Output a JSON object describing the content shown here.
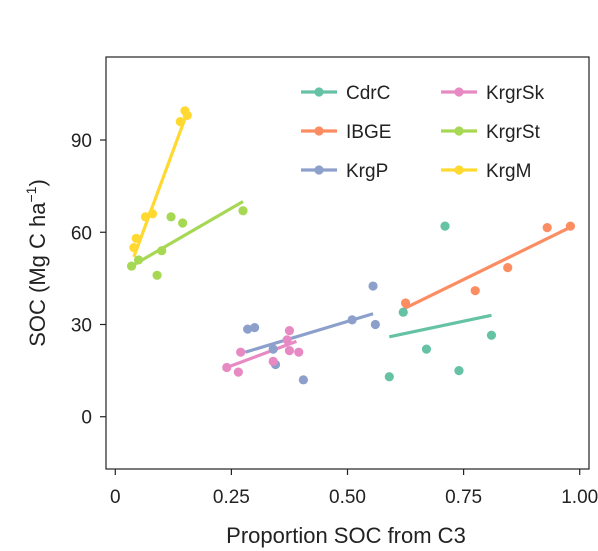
{
  "chart_data": {
    "type": "scatter",
    "xlabel": "Proportion SOC from C3",
    "ylabel_main": "SOC (Mg C ha",
    "ylabel_sup": "−1",
    "ylabel_close": ")",
    "xlim": [
      -0.02,
      1.02
    ],
    "ylim": [
      -17,
      117
    ],
    "xticks": [
      0,
      0.25,
      0.5,
      0.75,
      1.0
    ],
    "xtick_labels": [
      "0",
      "0.25",
      "0.50",
      "0.75",
      "1.00"
    ],
    "yticks": [
      0,
      30,
      60,
      90
    ],
    "ytick_labels": [
      "0",
      "30",
      "60",
      "90"
    ],
    "legend_position": "top-right",
    "series": [
      {
        "name": "CdrC",
        "color": "#66c2a5",
        "points": [
          [
            0.59,
            13
          ],
          [
            0.62,
            34
          ],
          [
            0.67,
            22
          ],
          [
            0.71,
            62
          ],
          [
            0.74,
            15
          ],
          [
            0.81,
            26.5
          ]
        ],
        "fit": [
          [
            0.59,
            26
          ],
          [
            0.81,
            33
          ]
        ]
      },
      {
        "name": "IBGE",
        "color": "#fc8d62",
        "points": [
          [
            0.625,
            37
          ],
          [
            0.775,
            41
          ],
          [
            0.845,
            48.5
          ],
          [
            0.93,
            61.5
          ],
          [
            0.98,
            62
          ]
        ],
        "fit": [
          [
            0.62,
            35
          ],
          [
            0.985,
            62
          ]
        ]
      },
      {
        "name": "KrgP",
        "color": "#8da0cb",
        "points": [
          [
            0.285,
            28.5
          ],
          [
            0.3,
            29
          ],
          [
            0.34,
            22
          ],
          [
            0.345,
            17
          ],
          [
            0.405,
            12
          ],
          [
            0.51,
            31.5
          ],
          [
            0.555,
            42.5
          ],
          [
            0.56,
            30
          ]
        ],
        "fit": [
          [
            0.28,
            21
          ],
          [
            0.555,
            33.5
          ]
        ]
      },
      {
        "name": "KrgrSk",
        "color": "#e78ac3",
        "points": [
          [
            0.24,
            16
          ],
          [
            0.265,
            14.5
          ],
          [
            0.27,
            21
          ],
          [
            0.34,
            18
          ],
          [
            0.37,
            25
          ],
          [
            0.375,
            28
          ],
          [
            0.375,
            21.5
          ],
          [
            0.395,
            21
          ]
        ],
        "fit": [
          [
            0.24,
            16
          ],
          [
            0.39,
            24.5
          ]
        ]
      },
      {
        "name": "KrgrSt",
        "color": "#a6d854",
        "points": [
          [
            0.035,
            49
          ],
          [
            0.05,
            51
          ],
          [
            0.09,
            46
          ],
          [
            0.1,
            54
          ],
          [
            0.12,
            65
          ],
          [
            0.145,
            63
          ],
          [
            0.275,
            67
          ]
        ],
        "fit": [
          [
            0.035,
            49
          ],
          [
            0.275,
            70
          ]
        ]
      },
      {
        "name": "KrgM",
        "color": "#ffd92f",
        "points": [
          [
            0.04,
            55
          ],
          [
            0.045,
            58
          ],
          [
            0.065,
            65
          ],
          [
            0.08,
            66
          ],
          [
            0.14,
            96
          ],
          [
            0.15,
            99.5
          ],
          [
            0.155,
            98
          ]
        ],
        "fit": [
          [
            0.04,
            52
          ],
          [
            0.155,
            99
          ]
        ]
      }
    ]
  }
}
